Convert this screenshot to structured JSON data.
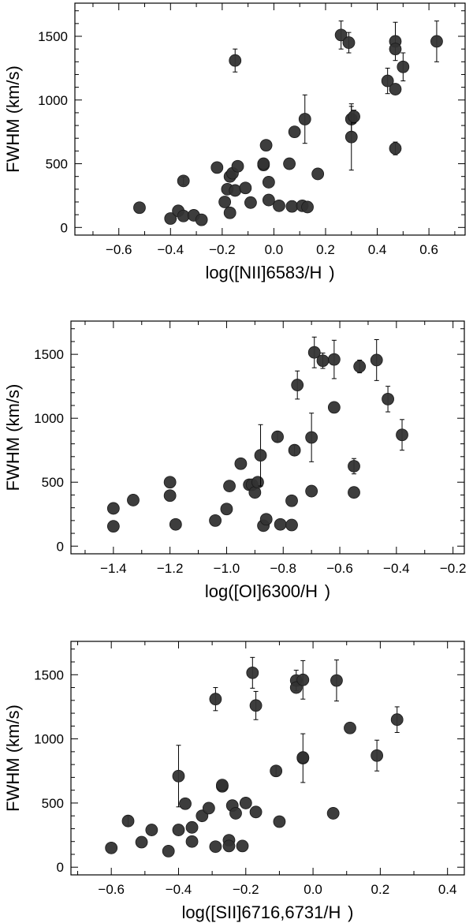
{
  "chart_data": [
    {
      "type": "scatter",
      "xlabel": "log([NII]6583/H  )",
      "ylabel": "FWHM (km/s)",
      "xlim": [
        -0.77,
        0.74
      ],
      "ylim": [
        -60,
        1760
      ],
      "xticks": [
        -0.6,
        -0.4,
        -0.2,
        0.0,
        0.2,
        0.4,
        0.6
      ],
      "xtick_labels": [
        "−0.6",
        "−0.4",
        "−0.2",
        "0.0",
        "0.2",
        "0.4",
        "0.6"
      ],
      "yticks": [
        0,
        500,
        1000,
        1500
      ],
      "ytick_labels": [
        "0",
        "500",
        "1000",
        "1500"
      ],
      "points": [
        {
          "x": -0.52,
          "y": 155
        },
        {
          "x": -0.4,
          "y": 70
        },
        {
          "x": -0.37,
          "y": 130
        },
        {
          "x": -0.35,
          "y": 365,
          "err": 30
        },
        {
          "x": -0.35,
          "y": 90
        },
        {
          "x": -0.31,
          "y": 95
        },
        {
          "x": -0.28,
          "y": 60
        },
        {
          "x": -0.22,
          "y": 470
        },
        {
          "x": -0.19,
          "y": 200
        },
        {
          "x": -0.18,
          "y": 300
        },
        {
          "x": -0.17,
          "y": 115
        },
        {
          "x": -0.17,
          "y": 400
        },
        {
          "x": -0.16,
          "y": 425
        },
        {
          "x": -0.15,
          "y": 290
        },
        {
          "x": -0.14,
          "y": 480
        },
        {
          "x": -0.15,
          "y": 1310,
          "err": 90
        },
        {
          "x": -0.11,
          "y": 310
        },
        {
          "x": -0.09,
          "y": 195
        },
        {
          "x": -0.04,
          "y": 490
        },
        {
          "x": -0.04,
          "y": 500
        },
        {
          "x": -0.03,
          "y": 645
        },
        {
          "x": -0.02,
          "y": 355
        },
        {
          "x": -0.02,
          "y": 215
        },
        {
          "x": 0.02,
          "y": 170
        },
        {
          "x": 0.06,
          "y": 500
        },
        {
          "x": 0.07,
          "y": 165
        },
        {
          "x": 0.08,
          "y": 750
        },
        {
          "x": 0.11,
          "y": 170
        },
        {
          "x": 0.12,
          "y": 850,
          "err": 190
        },
        {
          "x": 0.13,
          "y": 160
        },
        {
          "x": 0.17,
          "y": 420
        },
        {
          "x": 0.26,
          "y": 1510,
          "err": 110
        },
        {
          "x": 0.29,
          "y": 1450,
          "err": 80
        },
        {
          "x": 0.3,
          "y": 850,
          "err": 100
        },
        {
          "x": 0.3,
          "y": 710,
          "err": 260
        },
        {
          "x": 0.31,
          "y": 870,
          "err": 50
        },
        {
          "x": 0.44,
          "y": 1150,
          "err": 100
        },
        {
          "x": 0.47,
          "y": 1460,
          "err": 150
        },
        {
          "x": 0.47,
          "y": 1400
        },
        {
          "x": 0.47,
          "y": 1085
        },
        {
          "x": 0.47,
          "y": 620,
          "err": 50
        },
        {
          "x": 0.5,
          "y": 1260,
          "err": 110
        },
        {
          "x": 0.63,
          "y": 1460,
          "err": 160
        }
      ]
    },
    {
      "type": "scatter",
      "xlabel": "log([OI]6300/H  )",
      "ylabel": "FWHM (km/s)",
      "xlim": [
        -1.55,
        -0.16
      ],
      "ylim": [
        -60,
        1760
      ],
      "xticks": [
        -1.4,
        -1.2,
        -1.0,
        -0.8,
        -0.6,
        -0.4,
        -0.2
      ],
      "xtick_labels": [
        "−1.4",
        "−1.2",
        "−1.0",
        "−0.8",
        "−0.6",
        "−0.4",
        "−0.2"
      ],
      "yticks": [
        0,
        500,
        1000,
        1500
      ],
      "ytick_labels": [
        "0",
        "500",
        "1000",
        "1500"
      ],
      "points": [
        {
          "x": -1.4,
          "y": 155
        },
        {
          "x": -1.4,
          "y": 295
        },
        {
          "x": -1.33,
          "y": 360
        },
        {
          "x": -1.2,
          "y": 500
        },
        {
          "x": -1.2,
          "y": 395
        },
        {
          "x": -1.18,
          "y": 170
        },
        {
          "x": -1.04,
          "y": 200
        },
        {
          "x": -1.0,
          "y": 290
        },
        {
          "x": -0.99,
          "y": 470
        },
        {
          "x": -0.95,
          "y": 645
        },
        {
          "x": -0.92,
          "y": 480
        },
        {
          "x": -0.91,
          "y": 480
        },
        {
          "x": -0.9,
          "y": 420
        },
        {
          "x": -0.89,
          "y": 500
        },
        {
          "x": -0.88,
          "y": 710,
          "err": 240
        },
        {
          "x": -0.87,
          "y": 160
        },
        {
          "x": -0.86,
          "y": 210
        },
        {
          "x": -0.82,
          "y": 855,
          "err": 40
        },
        {
          "x": -0.81,
          "y": 170
        },
        {
          "x": -0.77,
          "y": 165
        },
        {
          "x": -0.77,
          "y": 355
        },
        {
          "x": -0.76,
          "y": 750,
          "err": 40
        },
        {
          "x": -0.7,
          "y": 850,
          "err": 190
        },
        {
          "x": -0.7,
          "y": 430
        },
        {
          "x": -0.69,
          "y": 1515,
          "err": 120
        },
        {
          "x": -0.66,
          "y": 1450,
          "err": 60
        },
        {
          "x": -0.62,
          "y": 1460,
          "err": 150
        },
        {
          "x": -0.62,
          "y": 1085
        },
        {
          "x": -0.53,
          "y": 1405,
          "err": 50
        },
        {
          "x": -0.55,
          "y": 625,
          "err": 60
        },
        {
          "x": -0.55,
          "y": 420
        },
        {
          "x": -0.47,
          "y": 1455,
          "err": 160
        },
        {
          "x": -0.43,
          "y": 1150,
          "err": 100
        },
        {
          "x": -0.38,
          "y": 870,
          "err": 120
        },
        {
          "x": -0.75,
          "y": 1260,
          "err": 110
        }
      ]
    },
    {
      "type": "scatter",
      "xlabel": "log([SII]6716,6731/H  )",
      "ylabel": "FWHM (km/s)",
      "xlim": [
        -0.72,
        0.45
      ],
      "ylim": [
        -60,
        1760
      ],
      "xticks": [
        -0.6,
        -0.4,
        -0.2,
        0.0,
        0.2,
        0.4
      ],
      "xtick_labels": [
        "−0.6",
        "−0.4",
        "−0.2",
        "0.0",
        "0.2",
        "0.4"
      ],
      "yticks": [
        0,
        500,
        1000,
        1500
      ],
      "ytick_labels": [
        "0",
        "500",
        "1000",
        "1500"
      ],
      "points": [
        {
          "x": -0.6,
          "y": 150
        },
        {
          "x": -0.55,
          "y": 360,
          "err": 40
        },
        {
          "x": -0.51,
          "y": 195
        },
        {
          "x": -0.48,
          "y": 290
        },
        {
          "x": -0.43,
          "y": 125
        },
        {
          "x": -0.4,
          "y": 710,
          "err": 240
        },
        {
          "x": -0.4,
          "y": 290
        },
        {
          "x": -0.38,
          "y": 495
        },
        {
          "x": -0.36,
          "y": 200
        },
        {
          "x": -0.36,
          "y": 310
        },
        {
          "x": -0.33,
          "y": 400
        },
        {
          "x": -0.31,
          "y": 460
        },
        {
          "x": -0.29,
          "y": 160
        },
        {
          "x": -0.29,
          "y": 1310,
          "err": 90
        },
        {
          "x": -0.27,
          "y": 630
        },
        {
          "x": -0.27,
          "y": 640
        },
        {
          "x": -0.25,
          "y": 210
        },
        {
          "x": -0.25,
          "y": 165
        },
        {
          "x": -0.24,
          "y": 480
        },
        {
          "x": -0.23,
          "y": 420
        },
        {
          "x": -0.21,
          "y": 165
        },
        {
          "x": -0.2,
          "y": 500
        },
        {
          "x": -0.18,
          "y": 1515,
          "err": 120
        },
        {
          "x": -0.17,
          "y": 430
        },
        {
          "x": -0.17,
          "y": 1260,
          "err": 110
        },
        {
          "x": -0.11,
          "y": 750,
          "err": 40
        },
        {
          "x": -0.1,
          "y": 355
        },
        {
          "x": -0.05,
          "y": 1455,
          "err": 80
        },
        {
          "x": -0.05,
          "y": 1400
        },
        {
          "x": -0.03,
          "y": 1460,
          "err": 150
        },
        {
          "x": -0.03,
          "y": 850,
          "err": 190
        },
        {
          "x": -0.03,
          "y": 855
        },
        {
          "x": 0.06,
          "y": 420
        },
        {
          "x": 0.07,
          "y": 1455,
          "err": 160
        },
        {
          "x": 0.11,
          "y": 1085
        },
        {
          "x": 0.19,
          "y": 870,
          "err": 120
        },
        {
          "x": 0.25,
          "y": 1150,
          "err": 100
        }
      ]
    }
  ]
}
